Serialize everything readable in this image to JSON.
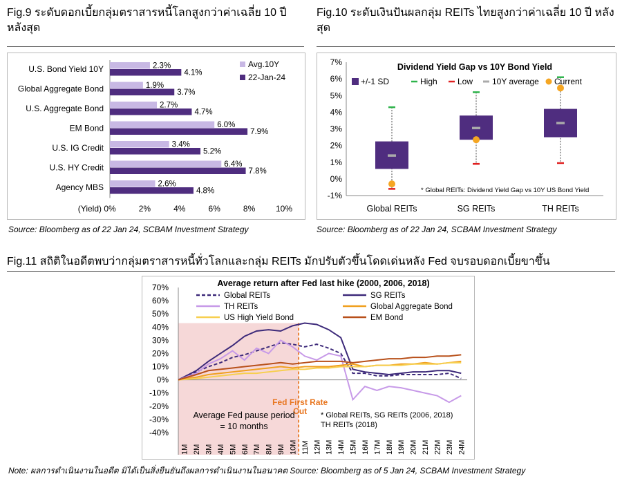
{
  "fig9": {
    "title": "Fig.9 ระดับดอกเบี้ยกลุ่มตราสารหนี้โลกสูงกว่าค่าเฉลี่ย 10 ปี หลังสุด",
    "source": "Source: Bloomberg as of 22 Jan 24, SCBAM Investment Strategy",
    "axis_unit": "(Yield)"
  },
  "fig10": {
    "title": "Fig.10 ระดับเงินปันผลกลุ่ม REITs ไทยสูงกว่าค่าเฉลี่ย 10 ปี หลังสุด",
    "source": "Source: Bloomberg as of 22 Jan 24, SCBAM Investment Strategy"
  },
  "fig11": {
    "title": "Fig.11 สถิติในอดีตพบว่ากลุ่มตราสารหนี้ทั่วโลกและกลุ่ม REITs มักปรับตัวขึ้นโดดเด่นหลัง Fed จบรอบดอกเบี้ยขาขึ้น",
    "note": "Note: ผลการดำเนินงานในอดีต มิได้เป็นสิ่งยืนยันถึงผลการดำเนินงานในอนาคต Source: Bloomberg as of 5 Jan 24, SCBAM Investment Strategy"
  },
  "chart_data": [
    {
      "type": "bar",
      "orientation": "horizontal",
      "categories": [
        "U.S. Bond Yield 10Y",
        "Global Aggregate Bond",
        "U.S. Aggregate Bond",
        "EM Bond",
        "U.S. IG Credit",
        "U.S. HY Credit",
        "Agency MBS"
      ],
      "series": [
        {
          "name": "Avg.10Y",
          "values": [
            2.3,
            1.9,
            2.7,
            6.0,
            3.4,
            6.4,
            2.6
          ],
          "labels": [
            "2.3%",
            "1.9%",
            "2.7%",
            "6.0%",
            "3.4%",
            "6.4%",
            "2.6%"
          ],
          "color": "#c8b8e4"
        },
        {
          "name": "22-Jan-24",
          "values": [
            4.1,
            3.7,
            4.7,
            7.9,
            5.2,
            7.8,
            4.8
          ],
          "labels": [
            "4.1%",
            "3.7%",
            "4.7%",
            "7.9%",
            "5.2%",
            "7.8%",
            "4.8%"
          ],
          "color": "#4f2d7f"
        }
      ],
      "xlim": [
        0,
        10
      ],
      "xticks": [
        "0%",
        "2%",
        "4%",
        "6%",
        "8%",
        "10%"
      ],
      "legend": "top-right"
    },
    {
      "type": "box",
      "title": "Dividend Yield Gap vs 10Y Bond Yield",
      "categories": [
        "Global REITs",
        "SG REITs",
        "TH REITs"
      ],
      "sd_low": [
        0.6,
        2.35,
        2.5
      ],
      "sd_high": [
        2.25,
        3.8,
        4.2
      ],
      "high": [
        4.3,
        5.2,
        6.1
      ],
      "low": [
        -0.6,
        0.9,
        0.95
      ],
      "average": [
        1.4,
        3.05,
        3.35
      ],
      "current": [
        -0.3,
        2.35,
        5.45
      ],
      "legend": [
        "+/-1 SD",
        "High",
        "Low",
        "10Y average",
        "Current"
      ],
      "ylim": [
        -1,
        7
      ],
      "yticks": [
        "-1%",
        "0%",
        "1%",
        "2%",
        "3%",
        "4%",
        "5%",
        "6%",
        "7%"
      ],
      "annotation": "* Global REITs: Dividend Yield Gap vs 10Y US Bond Yield",
      "colors": {
        "box": "#4f2d7f",
        "high": "#2db34a",
        "low": "#e02020",
        "average": "#aaaaaa",
        "current": "#f5a623"
      }
    },
    {
      "type": "line",
      "title": "Average return after Fed last hike (2000, 2006, 2018)",
      "x": [
        "1M",
        "2M",
        "3M",
        "4M",
        "5M",
        "6M",
        "7M",
        "8M",
        "9M",
        "10M",
        "11M",
        "12M",
        "13M",
        "14M",
        "15M",
        "16M",
        "17M",
        "18M",
        "19M",
        "20M",
        "21M",
        "22M",
        "23M",
        "24M"
      ],
      "ylim": [
        -40,
        70
      ],
      "yticks": [
        "70%",
        "60%",
        "50%",
        "40%",
        "30%",
        "20%",
        "10%",
        "0%",
        "-10%",
        "-20%",
        "-30%",
        "-40%"
      ],
      "series": [
        {
          "name": "Global REITs",
          "color": "#3d2a7a",
          "dash": true,
          "values": [
            0,
            6,
            10,
            13,
            17,
            19,
            22,
            25,
            28,
            27,
            25,
            27,
            24,
            20,
            5,
            5,
            3,
            3,
            4,
            4,
            4,
            4,
            5,
            1
          ]
        },
        {
          "name": "SG REITs",
          "color": "#3d2a7a",
          "dash": false,
          "values": [
            0,
            7,
            14,
            20,
            26,
            33,
            37,
            38,
            37,
            41,
            43,
            42,
            38,
            32,
            8,
            6,
            5,
            4,
            5,
            6,
            6,
            7,
            7,
            5
          ]
        },
        {
          "name": "TH REITs",
          "color": "#c79ae8",
          "dash": false,
          "values": [
            0,
            5,
            12,
            16,
            22,
            15,
            24,
            20,
            30,
            25,
            18,
            15,
            20,
            18,
            -15,
            -5,
            -8,
            -5,
            -6,
            -8,
            -10,
            -12,
            -17,
            -12
          ]
        },
        {
          "name": "Global Aggregate Bond",
          "color": "#f0a020",
          "dash": false,
          "values": [
            0,
            2,
            4,
            5,
            6,
            7,
            8,
            9,
            10,
            9,
            10,
            10,
            10,
            11,
            12,
            10,
            11,
            11,
            12,
            12,
            13,
            12,
            13,
            14
          ]
        },
        {
          "name": "US High Yield Bond",
          "color": "#f7cf4f",
          "dash": false,
          "values": [
            0,
            1,
            2,
            3,
            4,
            5,
            5,
            6,
            7,
            8,
            8,
            9,
            9,
            10,
            10,
            10,
            11,
            11,
            11,
            12,
            12,
            12,
            13,
            13
          ]
        },
        {
          "name": "EM Bond",
          "color": "#b8501a",
          "dash": false,
          "values": [
            0,
            4,
            7,
            8,
            9,
            10,
            11,
            12,
            13,
            12,
            13,
            14,
            14,
            14,
            13,
            14,
            15,
            16,
            16,
            17,
            17,
            18,
            18,
            19
          ]
        }
      ],
      "annotations": [
        "Fed First Rate Cut",
        "Average Fed pause period",
        "= 10 months",
        "* Global REITs, SG REITs (2006, 2018)",
        "TH REITs (2018)"
      ],
      "shaded_region": [
        "1M",
        "10M"
      ]
    }
  ]
}
